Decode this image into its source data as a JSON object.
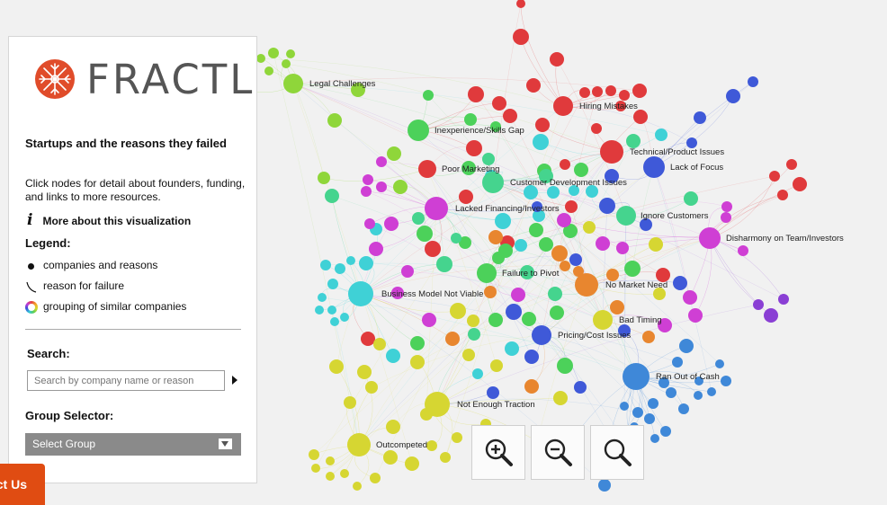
{
  "brand": {
    "name": "FRACTL"
  },
  "sidebar": {
    "title": "Startups and the reasons they failed",
    "subtitle": "Click nodes for detail about founders, funding, and links to more resources.",
    "info_icon": "i",
    "more_link": "More about this visualization",
    "legend_title": "Legend:",
    "legend": [
      {
        "icon": "black-dot-icon",
        "label": "companies and reasons"
      },
      {
        "icon": "curve-line-icon",
        "label": "reason for failure"
      },
      {
        "icon": "color-ring-icon",
        "label": "grouping of similar companies"
      }
    ],
    "search_title": "Search:",
    "search_placeholder": "Search by company name or reason",
    "group_title": "Group Selector:",
    "group_value": "Select Group"
  },
  "zoom": [
    {
      "icon": "zoom-in-icon"
    },
    {
      "icon": "zoom-out-icon"
    },
    {
      "icon": "zoom-reset-icon"
    }
  ],
  "contact_button": "Contact Us",
  "graph": {
    "colors": {
      "red": "#e03a3c",
      "orange": "#e8862f",
      "yellow": "#d6d632",
      "lime": "#8fd63a",
      "green": "#4cd15a",
      "teal": "#45d48e",
      "cyan": "#3fd1d6",
      "blue": "#3f59d8",
      "purple": "#8a3fd4",
      "magenta": "#cf3fd4",
      "skyblue": "#3f88d8"
    },
    "reasons": [
      "Legal Challenges",
      "Hiring Mistakes",
      "Inexperience/Skills Gap",
      "Technical/Product Issues",
      "Lack of Focus",
      "Poor Marketing",
      "Customer Development Issues",
      "Lacked Financing/Investors",
      "Ignore Customers",
      "Disharmony on Team/Investors",
      "Failure to Pivot",
      "No Market Need",
      "Business Model Not Viable",
      "Bad Timing",
      "Pricing/Cost Issues",
      "Ran Out of Cash",
      "Not Enough Traction",
      "Outcompeted"
    ]
  }
}
